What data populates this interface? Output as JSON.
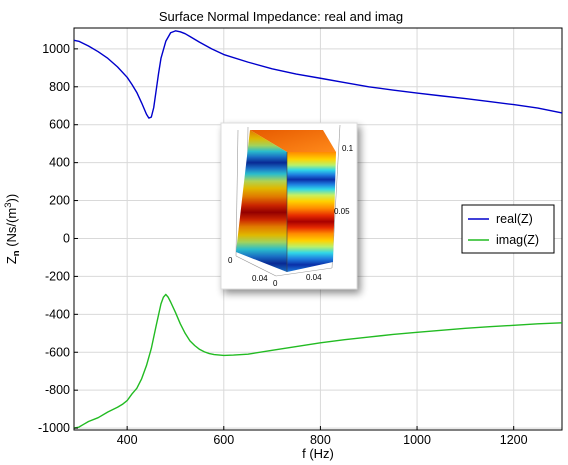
{
  "chart_data": {
    "type": "line",
    "title": "Surface Normal Impedance: real and imag",
    "xlabel": "f (Hz)",
    "ylabel_main": "Z",
    "ylabel_sub": "n",
    "ylabel_rest_pre": " (Ns/(m",
    "ylabel_sup": "3",
    "ylabel_rest_post": "))",
    "xlim": [
      290,
      1300
    ],
    "ylim": [
      -1010,
      1110
    ],
    "x_ticks": [
      400,
      600,
      800,
      1000,
      1200
    ],
    "y_ticks": [
      -1000,
      -800,
      -600,
      -400,
      -200,
      0,
      200,
      400,
      600,
      800,
      1000
    ],
    "grid": true,
    "legend_position": "right",
    "series": [
      {
        "name": "real(Z)",
        "color": "#0000cc",
        "x": [
          290,
          300,
          320,
          340,
          360,
          380,
          400,
          410,
          420,
          430,
          440,
          445,
          450,
          455,
          460,
          465,
          470,
          480,
          490,
          500,
          510,
          520,
          530,
          550,
          575,
          600,
          650,
          700,
          750,
          800,
          850,
          900,
          950,
          1000,
          1050,
          1100,
          1150,
          1200,
          1250,
          1300
        ],
        "y": [
          1045,
          1040,
          1015,
          985,
          950,
          905,
          850,
          812,
          770,
          715,
          655,
          635,
          640,
          690,
          780,
          870,
          950,
          1040,
          1085,
          1095,
          1090,
          1080,
          1065,
          1035,
          1000,
          970,
          930,
          895,
          867,
          845,
          822,
          800,
          783,
          767,
          752,
          738,
          722,
          706,
          688,
          662
        ]
      },
      {
        "name": "imag(Z)",
        "color": "#22bb22",
        "x": [
          290,
          300,
          310,
          320,
          340,
          360,
          380,
          390,
          400,
          410,
          420,
          430,
          440,
          450,
          460,
          470,
          475,
          480,
          485,
          490,
          500,
          510,
          520,
          530,
          540,
          550,
          560,
          570,
          580,
          600,
          620,
          650,
          700,
          750,
          800,
          850,
          900,
          950,
          1000,
          1050,
          1100,
          1150,
          1200,
          1250,
          1300
        ],
        "y": [
          -1000,
          -995,
          -980,
          -965,
          -945,
          -915,
          -890,
          -875,
          -855,
          -820,
          -790,
          -740,
          -670,
          -580,
          -460,
          -345,
          -310,
          -295,
          -310,
          -335,
          -390,
          -450,
          -500,
          -540,
          -565,
          -585,
          -598,
          -607,
          -612,
          -617,
          -615,
          -610,
          -590,
          -570,
          -550,
          -534,
          -520,
          -506,
          -495,
          -484,
          -474,
          -465,
          -458,
          -450,
          -445
        ]
      }
    ]
  },
  "inset": {
    "tick_top_right": "0.1",
    "tick_mid_right": "0.05",
    "tick_left_0": "0",
    "tick_bottom_a": "0.04",
    "tick_bottom_b": "0",
    "tick_bottom_c": "0.04"
  }
}
